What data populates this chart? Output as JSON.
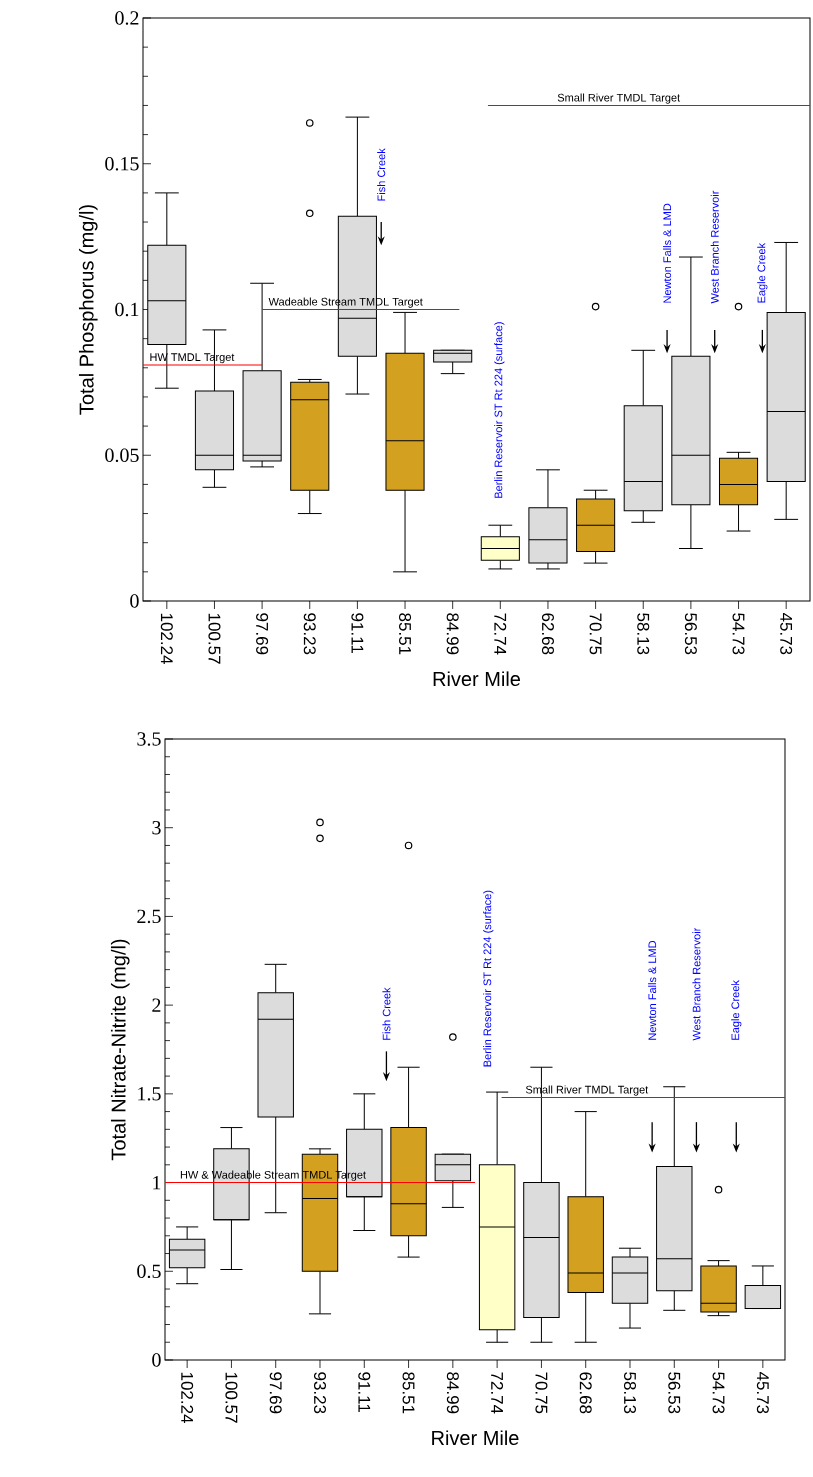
{
  "chart_data": [
    {
      "type": "box",
      "xlabel": "River Mile",
      "ylabel": "Total Phosphorus (mg/l)",
      "categories": [
        "102.24",
        "100.57",
        "97.69",
        "93.23",
        "91.11",
        "85.51",
        "84.99",
        "72.74",
        "62.68",
        "70.75",
        "58.13",
        "56.53",
        "54.73",
        "45.73"
      ],
      "boxes": [
        {
          "low": 0.073,
          "q1": 0.088,
          "median": 0.103,
          "q3": 0.122,
          "high": 0.14
        },
        {
          "low": 0.039,
          "q1": 0.045,
          "median": 0.05,
          "q3": 0.072,
          "high": 0.093
        },
        {
          "low": 0.046,
          "q1": 0.048,
          "median": 0.05,
          "q3": 0.079,
          "high": 0.109
        },
        {
          "low": 0.03,
          "q1": 0.038,
          "median": 0.069,
          "q3": 0.075,
          "high": 0.076,
          "outliers": [
            0.164,
            0.133
          ]
        },
        {
          "low": 0.071,
          "q1": 0.084,
          "median": 0.097,
          "q3": 0.132,
          "high": 0.166
        },
        {
          "low": 0.01,
          "q1": 0.038,
          "median": 0.055,
          "q3": 0.085,
          "high": 0.099
        },
        {
          "low": 0.078,
          "q1": 0.082,
          "median": 0.085,
          "q3": 0.086,
          "high": 0.086
        },
        {
          "low": 0.011,
          "q1": 0.014,
          "median": 0.018,
          "q3": 0.022,
          "high": 0.026
        },
        {
          "low": 0.011,
          "q1": 0.013,
          "median": 0.021,
          "q3": 0.032,
          "high": 0.045
        },
        {
          "low": 0.013,
          "q1": 0.017,
          "median": 0.026,
          "q3": 0.035,
          "high": 0.038,
          "outliers": [
            0.101
          ]
        },
        {
          "low": 0.027,
          "q1": 0.031,
          "median": 0.041,
          "q3": 0.067,
          "high": 0.086
        },
        {
          "low": 0.018,
          "q1": 0.033,
          "median": 0.05,
          "q3": 0.084,
          "high": 0.118
        },
        {
          "low": 0.024,
          "q1": 0.033,
          "median": 0.04,
          "q3": 0.049,
          "high": 0.051,
          "outliers": [
            0.101
          ]
        },
        {
          "low": 0.028,
          "q1": 0.041,
          "median": 0.065,
          "q3": 0.099,
          "high": 0.123
        }
      ],
      "colors": [
        "#dcdcdc",
        "#dcdcdc",
        "#dcdcdc",
        "#d4a020",
        "#dcdcdc",
        "#d4a020",
        "#dcdcdc",
        "#ffffc8",
        "#dcdcdc",
        "#d4a020",
        "#dcdcdc",
        "#dcdcdc",
        "#d4a020",
        "#dcdcdc"
      ],
      "ylim": [
        0,
        0.2
      ],
      "yticks": [
        0,
        0.05,
        0.1,
        0.15,
        0.2
      ],
      "ref_lines": [
        {
          "axis": "y",
          "value": 0.081,
          "label": "HW TMDL Target",
          "color": "#ff0000"
        },
        {
          "axis": "y",
          "value": 0.1,
          "label": "Wadeable Stream TMDL Target",
          "color": "#ff0000"
        },
        {
          "axis": "y",
          "value": 0.17,
          "label": "Small River  TMDL Target",
          "color": "#ff0000"
        }
      ],
      "annotations": [
        "Fish Creek",
        "Berlin Reservoir ST Rt 224 (surface)",
        "Newton Falls & LMD",
        "West Branch Reservoir",
        "Eagle Creek"
      ]
    },
    {
      "type": "box",
      "xlabel": "River Mile",
      "ylabel": "Total Nitrate-Nitrite (mg/l)",
      "categories": [
        "102.24",
        "100.57",
        "97.69",
        "93.23",
        "91.11",
        "85.51",
        "84.99",
        "72.74",
        "70.75",
        "62.68",
        "58.13",
        "56.53",
        "54.73",
        "45.73"
      ],
      "boxes": [
        {
          "low": 0.43,
          "q1": 0.52,
          "median": 0.62,
          "q3": 0.68,
          "high": 0.75
        },
        {
          "low": 0.51,
          "q1": 0.79,
          "median": 0.79,
          "q3": 1.19,
          "high": 1.31
        },
        {
          "low": 0.83,
          "q1": 1.37,
          "median": 1.92,
          "q3": 2.07,
          "high": 2.23
        },
        {
          "low": 0.26,
          "q1": 0.5,
          "median": 0.91,
          "q3": 1.16,
          "high": 1.19,
          "outliers": [
            3.03,
            2.94
          ]
        },
        {
          "low": 0.73,
          "q1": 0.92,
          "median": 0.92,
          "q3": 1.3,
          "high": 1.5
        },
        {
          "low": 0.58,
          "q1": 0.7,
          "median": 0.88,
          "q3": 1.31,
          "high": 1.65,
          "outliers": [
            2.9
          ]
        },
        {
          "low": 0.86,
          "q1": 1.01,
          "median": 1.1,
          "q3": 1.16,
          "high": 1.16,
          "outliers": [
            1.82
          ]
        },
        {
          "low": 0.1,
          "q1": 0.17,
          "median": 0.75,
          "q3": 1.1,
          "high": 1.51
        },
        {
          "low": 0.1,
          "q1": 0.24,
          "median": 0.69,
          "q3": 1.0,
          "high": 1.65
        },
        {
          "low": 0.1,
          "q1": 0.38,
          "median": 0.49,
          "q3": 0.92,
          "high": 1.4
        },
        {
          "low": 0.18,
          "q1": 0.32,
          "median": 0.49,
          "q3": 0.58,
          "high": 0.63
        },
        {
          "low": 0.28,
          "q1": 0.39,
          "median": 0.57,
          "q3": 1.09,
          "high": 1.54
        },
        {
          "low": 0.25,
          "q1": 0.27,
          "median": 0.32,
          "q3": 0.53,
          "high": 0.56,
          "outliers": [
            0.96
          ]
        },
        {
          "low": 0.29,
          "q1": 0.29,
          "median": 0.29,
          "q3": 0.42,
          "high": 0.53
        }
      ],
      "colors": [
        "#dcdcdc",
        "#dcdcdc",
        "#dcdcdc",
        "#d4a020",
        "#dcdcdc",
        "#d4a020",
        "#dcdcdc",
        "#ffffc8",
        "#dcdcdc",
        "#d4a020",
        "#dcdcdc",
        "#dcdcdc",
        "#d4a020",
        "#dcdcdc"
      ],
      "ylim": [
        0,
        3.5
      ],
      "yticks": [
        0,
        0.5,
        1,
        1.5,
        2,
        2.5,
        3,
        3.5
      ],
      "ref_lines": [
        {
          "axis": "y",
          "value": 1.0,
          "label": "HW & Wadeable Stream TMDL Target",
          "color": "#ff0000"
        },
        {
          "axis": "y",
          "value": 1.48,
          "label": "Small River  TMDL Target",
          "color": "#ff0000"
        }
      ],
      "annotations": [
        "Fish Creek",
        "Berlin Reservoir ST Rt 224 (surface)",
        "Newton Falls & LMD",
        "West Branch Reservoir",
        "Eagle Creek"
      ]
    }
  ]
}
